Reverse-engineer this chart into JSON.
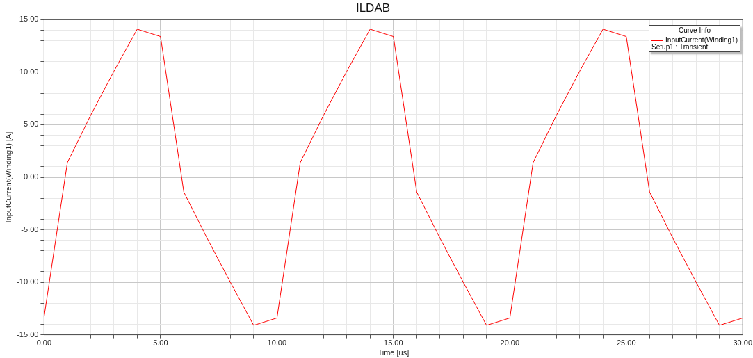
{
  "chart_data": {
    "type": "line",
    "title": "ILDAB",
    "xlabel": "Time [us]",
    "ylabel": "InputCurrent(Winding1) [A]",
    "legend_title": "Curve Info",
    "annotations": [
      "Setup1 : Transient"
    ],
    "x": [
      0,
      1,
      2,
      3,
      4,
      5,
      6,
      7,
      8,
      9,
      10,
      11,
      12,
      13,
      14,
      15,
      16,
      17,
      18,
      19,
      20,
      21,
      22,
      23,
      24,
      25,
      26,
      27,
      28,
      29,
      30
    ],
    "series": [
      {
        "name": "InputCurrent(Winding1)",
        "color": "#ff0000",
        "values": [
          -13.3,
          1.4,
          5.9,
          10.1,
          14.1,
          13.4,
          -1.4,
          -5.8,
          -10.0,
          -14.1,
          -13.4,
          1.4,
          5.9,
          10.1,
          14.1,
          13.4,
          -1.4,
          -5.8,
          -10.0,
          -14.1,
          -13.4,
          1.4,
          5.9,
          10.1,
          14.1,
          13.4,
          -1.4,
          -5.8,
          -10.0,
          -14.1,
          -13.4
        ]
      }
    ],
    "xlim": [
      0,
      30
    ],
    "ylim": [
      -15,
      15
    ],
    "xticks": [
      {
        "value": 0,
        "label": "0.00"
      },
      {
        "value": 1,
        "label": null
      },
      {
        "value": 2,
        "label": null
      },
      {
        "value": 3,
        "label": null
      },
      {
        "value": 4,
        "label": null
      },
      {
        "value": 5,
        "label": "5.00"
      },
      {
        "value": 6,
        "label": null
      },
      {
        "value": 7,
        "label": null
      },
      {
        "value": 8,
        "label": null
      },
      {
        "value": 9,
        "label": null
      },
      {
        "value": 10,
        "label": "10.00"
      },
      {
        "value": 11,
        "label": null
      },
      {
        "value": 12,
        "label": null
      },
      {
        "value": 13,
        "label": null
      },
      {
        "value": 14,
        "label": null
      },
      {
        "value": 15,
        "label": "15.00"
      },
      {
        "value": 16,
        "label": null
      },
      {
        "value": 17,
        "label": null
      },
      {
        "value": 18,
        "label": null
      },
      {
        "value": 19,
        "label": null
      },
      {
        "value": 20,
        "label": "20.00"
      },
      {
        "value": 21,
        "label": null
      },
      {
        "value": 22,
        "label": null
      },
      {
        "value": 23,
        "label": null
      },
      {
        "value": 24,
        "label": null
      },
      {
        "value": 25,
        "label": "25.00"
      },
      {
        "value": 26,
        "label": null
      },
      {
        "value": 27,
        "label": null
      },
      {
        "value": 28,
        "label": null
      },
      {
        "value": 29,
        "label": null
      },
      {
        "value": 30,
        "label": "30.00"
      }
    ],
    "yticks": [
      {
        "value": -15,
        "label": "-15.00"
      },
      {
        "value": -14,
        "label": null
      },
      {
        "value": -13,
        "label": null
      },
      {
        "value": -12,
        "label": null
      },
      {
        "value": -11,
        "label": null
      },
      {
        "value": -10,
        "label": "-10.00"
      },
      {
        "value": -9,
        "label": null
      },
      {
        "value": -8,
        "label": null
      },
      {
        "value": -7,
        "label": null
      },
      {
        "value": -6,
        "label": null
      },
      {
        "value": -5,
        "label": "-5.00"
      },
      {
        "value": -4,
        "label": null
      },
      {
        "value": -3,
        "label": null
      },
      {
        "value": -2,
        "label": null
      },
      {
        "value": -1,
        "label": null
      },
      {
        "value": 0,
        "label": "0.00"
      },
      {
        "value": 1,
        "label": null
      },
      {
        "value": 2,
        "label": null
      },
      {
        "value": 3,
        "label": null
      },
      {
        "value": 4,
        "label": null
      },
      {
        "value": 5,
        "label": "5.00"
      },
      {
        "value": 6,
        "label": null
      },
      {
        "value": 7,
        "label": null
      },
      {
        "value": 8,
        "label": null
      },
      {
        "value": 9,
        "label": null
      },
      {
        "value": 10,
        "label": "10.00"
      },
      {
        "value": 11,
        "label": null
      },
      {
        "value": 12,
        "label": null
      },
      {
        "value": 13,
        "label": null
      },
      {
        "value": 14,
        "label": null
      },
      {
        "value": 15,
        "label": "15.00"
      }
    ],
    "grid": true,
    "legend": "top right",
    "marker": "none",
    "line_style": "solid"
  }
}
